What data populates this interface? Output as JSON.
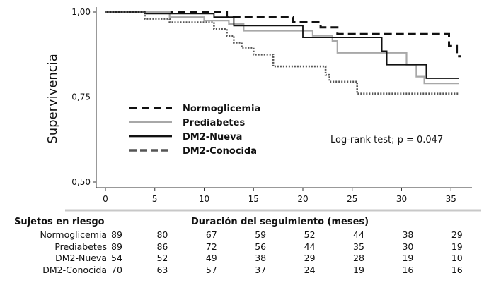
{
  "chart_data": {
    "type": "line",
    "title": "",
    "ylabel": "Supervivencia",
    "xlabel": "Duración del seguimiento (meses)",
    "xlim": [
      0,
      36
    ],
    "ylim": [
      0.5,
      1.0
    ],
    "x_ticks": [
      0,
      5,
      10,
      15,
      20,
      25,
      30,
      35
    ],
    "y_ticks": [
      {
        "value": 1.0,
        "label": "1,00"
      },
      {
        "value": 0.75,
        "label": "0,75"
      },
      {
        "value": 0.5,
        "label": "0,50"
      }
    ],
    "annotation": "Log-rank test; p = 0.047",
    "legend_position": "center-left",
    "series": [
      {
        "name": "Normoglicemia",
        "color": "#111111",
        "dash": "dash",
        "width": 3,
        "points": [
          [
            0,
            1.0
          ],
          [
            12.3,
            1.0
          ],
          [
            12.3,
            0.985
          ],
          [
            19,
            0.985
          ],
          [
            19,
            0.97
          ],
          [
            21.8,
            0.97
          ],
          [
            21.8,
            0.955
          ],
          [
            23.5,
            0.955
          ],
          [
            23.5,
            0.935
          ],
          [
            34.8,
            0.935
          ],
          [
            34.8,
            0.9
          ],
          [
            35.6,
            0.9
          ],
          [
            35.6,
            0.87
          ],
          [
            36,
            0.87
          ]
        ]
      },
      {
        "name": "Prediabetes",
        "color": "#a8a8a8",
        "dash": "solid",
        "width": 2.2,
        "points": [
          [
            0,
            1.0
          ],
          [
            6.5,
            1.0
          ],
          [
            6.5,
            0.985
          ],
          [
            10,
            0.985
          ],
          [
            10,
            0.975
          ],
          [
            12.5,
            0.975
          ],
          [
            12.5,
            0.965
          ],
          [
            14,
            0.965
          ],
          [
            14,
            0.945
          ],
          [
            21,
            0.945
          ],
          [
            21,
            0.93
          ],
          [
            23,
            0.93
          ],
          [
            23,
            0.915
          ],
          [
            23.5,
            0.915
          ],
          [
            23.5,
            0.88
          ],
          [
            30.5,
            0.88
          ],
          [
            30.5,
            0.845
          ],
          [
            31.5,
            0.845
          ],
          [
            31.5,
            0.81
          ],
          [
            32.3,
            0.81
          ],
          [
            32.3,
            0.79
          ],
          [
            35.8,
            0.79
          ]
        ]
      },
      {
        "name": "DM2-Nueva",
        "color": "#111111",
        "dash": "solid",
        "width": 1.8,
        "points": [
          [
            0,
            1.0
          ],
          [
            4,
            1.0
          ],
          [
            4,
            0.995
          ],
          [
            11,
            0.995
          ],
          [
            11,
            0.985
          ],
          [
            13,
            0.985
          ],
          [
            13,
            0.96
          ],
          [
            20,
            0.96
          ],
          [
            20,
            0.925
          ],
          [
            28,
            0.925
          ],
          [
            28,
            0.885
          ],
          [
            28.5,
            0.885
          ],
          [
            28.5,
            0.845
          ],
          [
            32.5,
            0.845
          ],
          [
            32.5,
            0.805
          ],
          [
            35.8,
            0.805
          ]
        ]
      },
      {
        "name": "DM2-Conocida",
        "color": "#555555",
        "dash": "dot",
        "width": 2.6,
        "points": [
          [
            0,
            1.0
          ],
          [
            4,
            1.0
          ],
          [
            4,
            0.98
          ],
          [
            6.5,
            0.98
          ],
          [
            6.5,
            0.97
          ],
          [
            11,
            0.97
          ],
          [
            11,
            0.95
          ],
          [
            12.3,
            0.95
          ],
          [
            12.3,
            0.93
          ],
          [
            13,
            0.93
          ],
          [
            13,
            0.91
          ],
          [
            13.8,
            0.91
          ],
          [
            13.8,
            0.895
          ],
          [
            15,
            0.895
          ],
          [
            15,
            0.875
          ],
          [
            17,
            0.875
          ],
          [
            17,
            0.84
          ],
          [
            22.3,
            0.84
          ],
          [
            22.3,
            0.815
          ],
          [
            22.7,
            0.815
          ],
          [
            22.7,
            0.795
          ],
          [
            25.5,
            0.795
          ],
          [
            25.5,
            0.76
          ],
          [
            35.8,
            0.76
          ]
        ]
      }
    ]
  },
  "risk_table": {
    "title": "Sujetos en riesgo",
    "rows": [
      {
        "name": "Normoglicemia",
        "values": [
          "89",
          "80",
          "67",
          "59",
          "52",
          "44",
          "38",
          "29"
        ]
      },
      {
        "name": "Prediabetes",
        "values": [
          "89",
          "86",
          "72",
          "56",
          "44",
          "35",
          "30",
          "19"
        ]
      },
      {
        "name": "DM2-Nueva",
        "values": [
          "54",
          "52",
          "49",
          "38",
          "29",
          "28",
          "19",
          "10"
        ]
      },
      {
        "name": "DM2-Conocida",
        "values": [
          "70",
          "63",
          "57",
          "37",
          "24",
          "19",
          "16",
          "16"
        ]
      }
    ]
  }
}
